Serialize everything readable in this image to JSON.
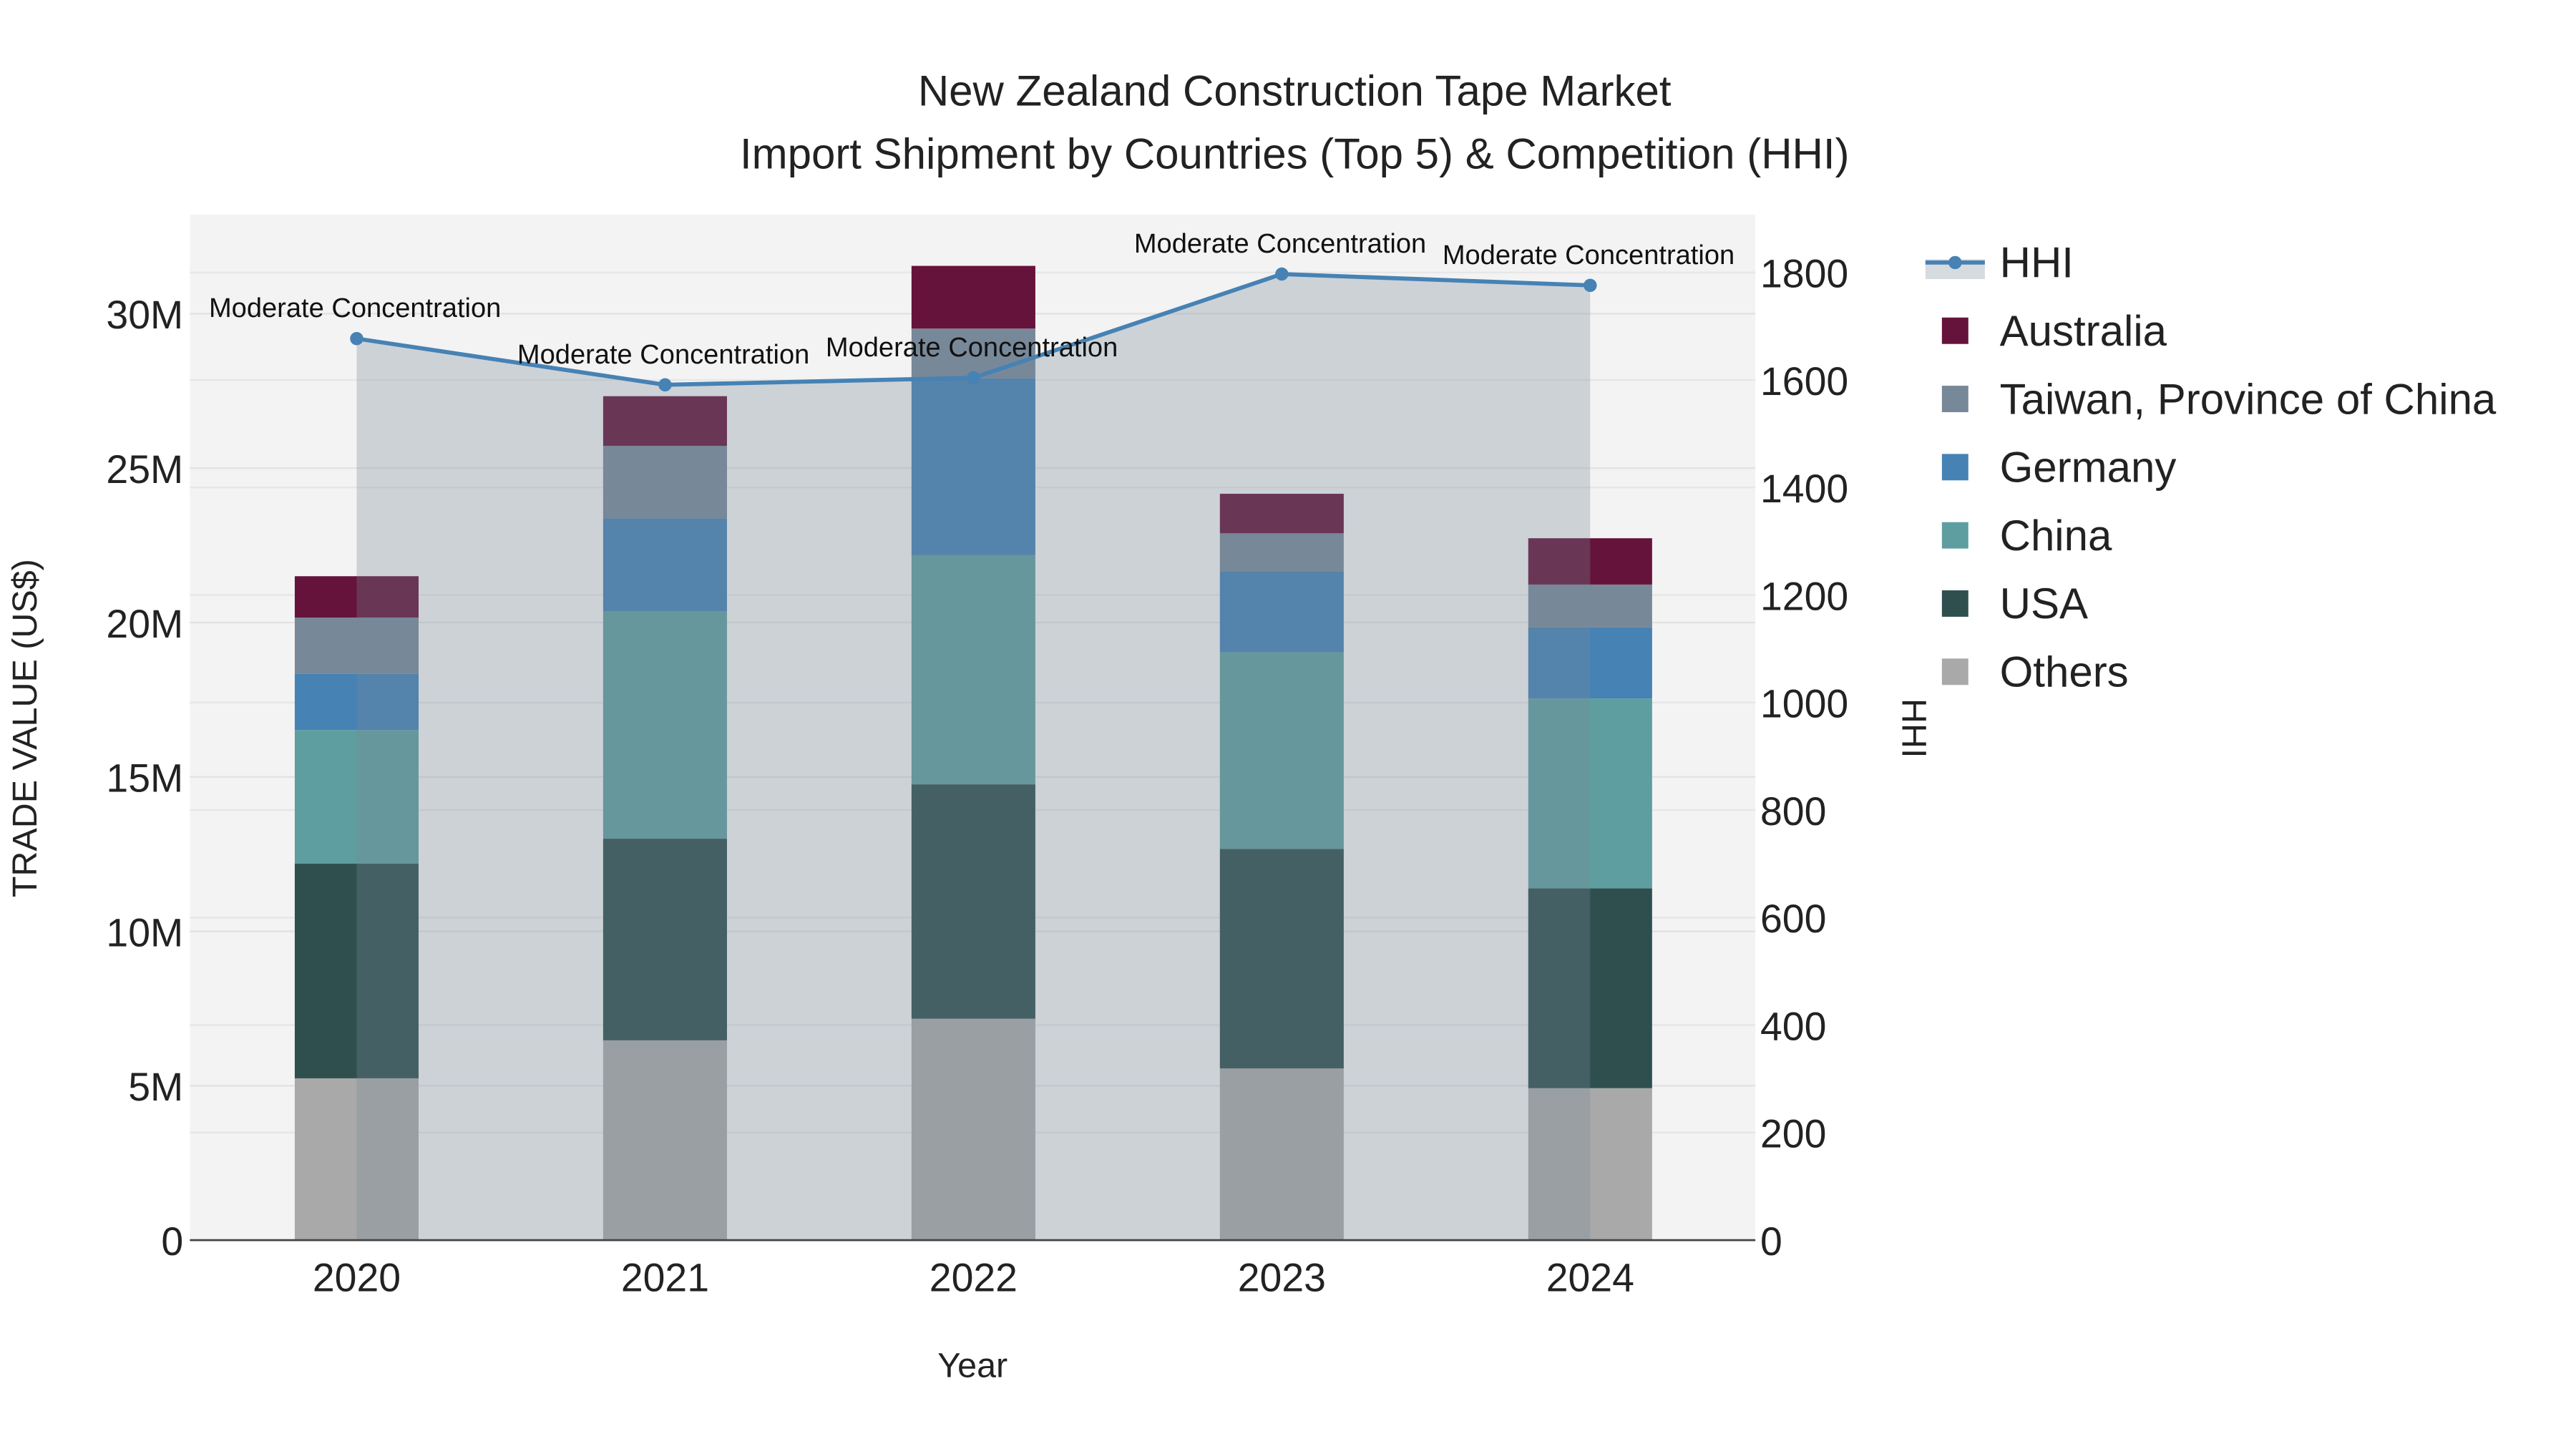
{
  "chart_data": {
    "type": "bar",
    "barmode": "stack",
    "title": "New Zealand Construction Tape Market",
    "subtitle": "Import Shipment by Countries (Top 5) & Competition (HHI)",
    "xlabel": "Year",
    "ylabel": "TRADE VALUE (US$)",
    "y2label": "HHI",
    "categories": [
      "2020",
      "2021",
      "2022",
      "2023",
      "2024"
    ],
    "ylim": [
      0,
      33000000
    ],
    "y2lim": [
      0,
      1900
    ],
    "yticks": [
      {
        "v": 0,
        "label": "0"
      },
      {
        "v": 5000000,
        "label": "5M"
      },
      {
        "v": 10000000,
        "label": "10M"
      },
      {
        "v": 15000000,
        "label": "15M"
      },
      {
        "v": 20000000,
        "label": "20M"
      },
      {
        "v": 25000000,
        "label": "25M"
      },
      {
        "v": 30000000,
        "label": "30M"
      }
    ],
    "y2ticks": [
      {
        "v": 0,
        "label": "0"
      },
      {
        "v": 200,
        "label": "200"
      },
      {
        "v": 400,
        "label": "400"
      },
      {
        "v": 600,
        "label": "600"
      },
      {
        "v": 800,
        "label": "800"
      },
      {
        "v": 1000,
        "label": "1000"
      },
      {
        "v": 1200,
        "label": "1200"
      },
      {
        "v": 1400,
        "label": "1400"
      },
      {
        "v": 1600,
        "label": "1600"
      },
      {
        "v": 1800,
        "label": "1800"
      }
    ],
    "series": [
      {
        "name": "Others",
        "color": "#a9a9a9",
        "values": [
          5240000,
          6470000,
          7170000,
          5560000,
          4920000
        ]
      },
      {
        "name": "USA",
        "color": "#2f4f4f",
        "values": [
          6950000,
          6530000,
          7590000,
          7110000,
          6470000
        ]
      },
      {
        "name": "China",
        "color": "#5f9ea0",
        "values": [
          4330000,
          7370000,
          7430000,
          6370000,
          6150000
        ]
      },
      {
        "name": "Germany",
        "color": "#4682b4",
        "values": [
          1820000,
          3000000,
          5720000,
          2620000,
          2300000
        ]
      },
      {
        "name": "Taiwan, Province of China",
        "color": "#778899",
        "values": [
          1820000,
          2350000,
          1610000,
          1230000,
          1390000
        ]
      },
      {
        "name": "Australia",
        "color": "#65133a",
        "values": [
          1340000,
          1610000,
          2030000,
          1280000,
          1500000
        ]
      }
    ],
    "hhi": {
      "name": "HHI",
      "color": "#4682b4",
      "values": [
        1677,
        1591,
        1604,
        1797,
        1776
      ],
      "annotations": [
        "Moderate Concentration",
        "Moderate Concentration",
        "Moderate Concentration",
        "Moderate Concentration",
        "Moderate Concentration"
      ]
    },
    "legend_position": "right",
    "legend_order": [
      "HHI",
      "Australia",
      "Taiwan, Province of China",
      "Germany",
      "China",
      "USA",
      "Others"
    ],
    "grid": true
  }
}
